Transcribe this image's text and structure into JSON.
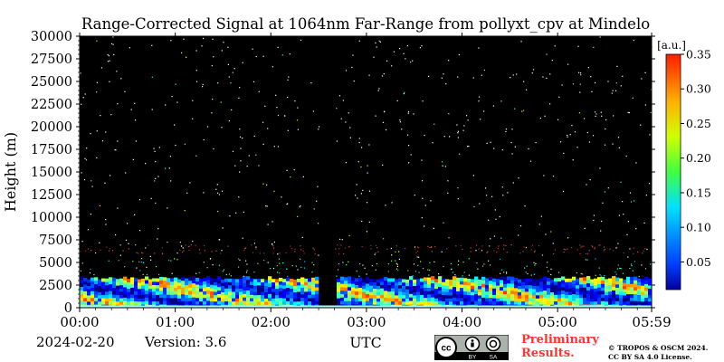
{
  "chart_data": {
    "type": "heatmap",
    "title": "Range-Corrected Signal at 1064nm Far-Range from pollyxt_cpv at Mindelo",
    "xlabel": "UTC",
    "ylabel": "Height (m)",
    "x_ticks": [
      "00:00",
      "01:00",
      "02:00",
      "03:00",
      "04:00",
      "05:00",
      "05:59"
    ],
    "x_range_hours": [
      0,
      5.983
    ],
    "y_ticks": [
      "0",
      "2500",
      "5000",
      "7500",
      "10000",
      "12500",
      "15000",
      "17500",
      "20000",
      "22500",
      "25000",
      "27500",
      "30000"
    ],
    "ylim": [
      0,
      30000
    ],
    "colorbar": {
      "unit": "[a.u.]",
      "min": 0.01,
      "max": 0.35,
      "ticks": [
        "0.05",
        "0.10",
        "0.15",
        "0.20",
        "0.25",
        "0.30",
        "0.35"
      ],
      "colormap": "jet"
    },
    "background_color": "#000000",
    "data_gap_hours": [
      2.5,
      2.67
    ],
    "aerosol_layer_top_m": 3500,
    "elevated_weak_layer_m": [
      6000,
      7000
    ],
    "grid": false,
    "legend": "colorbar-right"
  },
  "footer": {
    "date": "2024-02-20",
    "version": "Version: 3.6",
    "preliminary_line1": "Preliminary",
    "preliminary_line2": "Results.",
    "copyright_line1": "© TROPOS & OSCM 2024.",
    "copyright_line2": "CC BY SA 4.0 License."
  },
  "license_badge": {
    "cc": "cc",
    "by": "BY",
    "sa": "SA"
  }
}
